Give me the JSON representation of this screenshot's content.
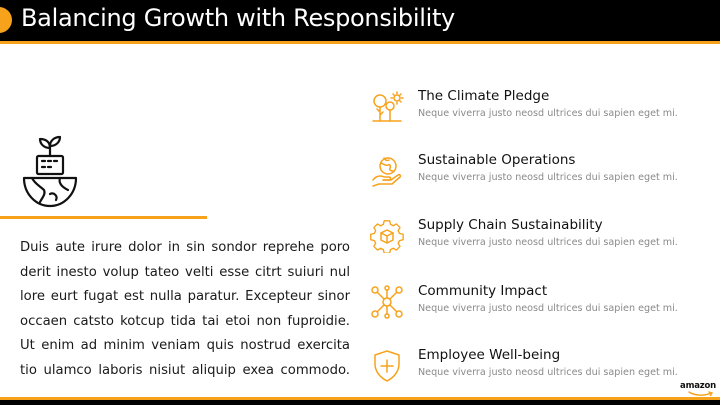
{
  "header": {
    "title": "Balancing Growth with Responsibility"
  },
  "hero": {
    "icon": "plant-globe-icon"
  },
  "body_text": {
    "lines": [
      "Duis aute irure dolor in sin sondor reprehe poro",
      "derit inesto volup tateo velti esse citrt suiuri nul",
      "lore eurt fugat est nulla paratur. Excepteur sinor",
      "occaen catsto kotcup tida tai etoi non fuproidie.",
      "Ut enim ad minim veniam quis nostrud exercita",
      "tio ulamco laboris nisiut aliquip exea commodo."
    ]
  },
  "items": [
    {
      "title": "The Climate Pledge",
      "desc": "Neque viverra justo neosd ultrices dui sapien eget mi.",
      "icon": "tree-sun-icon"
    },
    {
      "title": "Sustainable Operations",
      "desc": "Neque viverra justo neosd ultrices dui sapien eget mi.",
      "icon": "hand-globe-icon"
    },
    {
      "title": "Supply Chain Sustainability",
      "desc": "Neque viverra justo neosd ultrices dui sapien eget mi.",
      "icon": "gear-box-icon"
    },
    {
      "title": "Community Impact",
      "desc": "Neque viverra justo neosd ultrices dui sapien eget mi.",
      "icon": "network-people-icon"
    },
    {
      "title": "Employee Well-being",
      "desc": "Neque viverra justo neosd ultrices dui sapien eget mi.",
      "icon": "shield-heart-icon"
    }
  ],
  "footer": {
    "logo_text": "amazon"
  },
  "colors": {
    "accent": "#F7A21B",
    "header_bg": "#000000",
    "text": "#1a1a1a",
    "muted": "#8a8a8a"
  }
}
